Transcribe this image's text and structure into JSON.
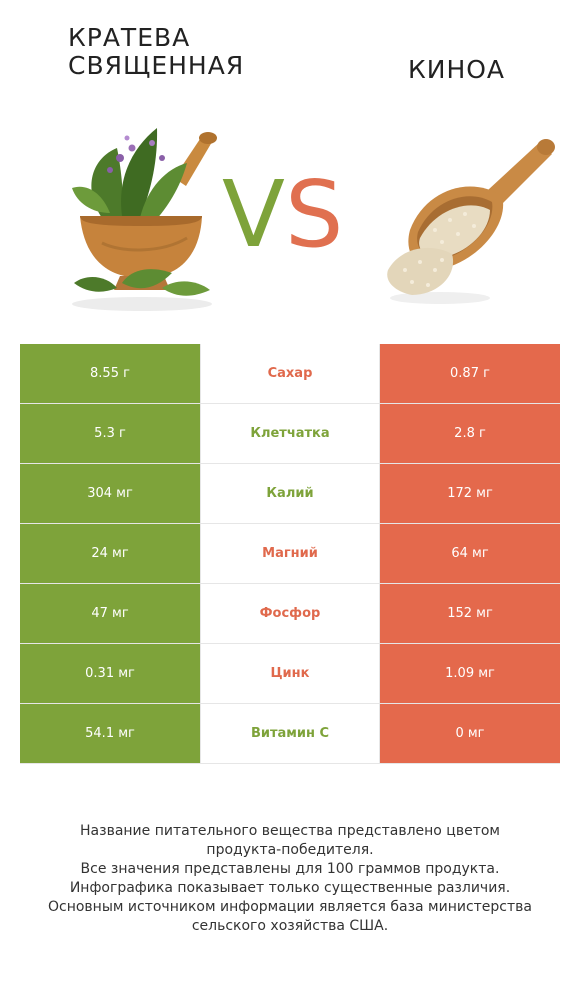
{
  "header": {
    "left_title_line1": "Кратева",
    "left_title_line2": "священная",
    "right_title": "Киноа",
    "vs_v": "V",
    "vs_s": "S"
  },
  "colors": {
    "left_accent": "#7ea33a",
    "right_accent": "#e4694c"
  },
  "images": {
    "left": "herbs-mortar-icon",
    "right": "quinoa-scoop-icon"
  },
  "rows": [
    {
      "left": "8.55 г",
      "name": "Сахар",
      "right": "0.87 г",
      "winner": "right"
    },
    {
      "left": "5.3 г",
      "name": "Клетчатка",
      "right": "2.8 г",
      "winner": "left"
    },
    {
      "left": "304 мг",
      "name": "Калий",
      "right": "172 мг",
      "winner": "left"
    },
    {
      "left": "24 мг",
      "name": "Магний",
      "right": "64 мг",
      "winner": "right"
    },
    {
      "left": "47 мг",
      "name": "Фосфор",
      "right": "152 мг",
      "winner": "right"
    },
    {
      "left": "0.31 мг",
      "name": "Цинк",
      "right": "1.09 мг",
      "winner": "right"
    },
    {
      "left": "54.1 мг",
      "name": "Витамин С",
      "right": "0 мг",
      "winner": "left"
    }
  ],
  "footer": [
    "Название питательного вещества представлено цветом",
    "продукта-победителя.",
    "Все значения представлены для 100 граммов продукта.",
    "Инфографика показывает только существенные различия.",
    "Основным источником информации является база министерства",
    "сельского хозяйства США."
  ]
}
